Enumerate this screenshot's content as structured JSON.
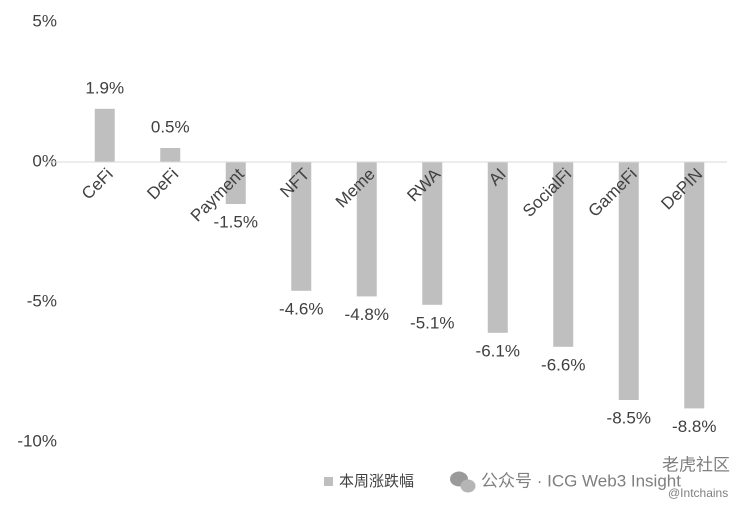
{
  "chart_data": {
    "type": "bar",
    "categories": [
      "CeFi",
      "DeFi",
      "Payment",
      "NFT",
      "Meme",
      "RWA",
      "AI",
      "SocialFi",
      "GameFi",
      "DePIN"
    ],
    "values": [
      1.9,
      0.5,
      -1.5,
      -4.6,
      -4.8,
      -5.1,
      -6.1,
      -6.6,
      -8.5,
      -8.8
    ],
    "value_labels": [
      "1.9%",
      "0.5%",
      "-1.5%",
      "-4.6%",
      "-4.8%",
      "-5.1%",
      "-6.1%",
      "-6.6%",
      "-8.5%",
      "-8.8%"
    ],
    "series_name": "本周涨跌幅",
    "color": "#bfbfbf",
    "ylim": [
      -10,
      5
    ],
    "yticks": [
      {
        "value": 5,
        "label": "5%"
      },
      {
        "value": 0,
        "label": "0%"
      },
      {
        "value": -5,
        "label": "-5%"
      },
      {
        "value": -10,
        "label": "-10%"
      }
    ],
    "grid": false
  },
  "watermark": {
    "account": "公众号 · ICG Web3 Insight",
    "community": "老虎社区",
    "handle": "@Intchains"
  }
}
